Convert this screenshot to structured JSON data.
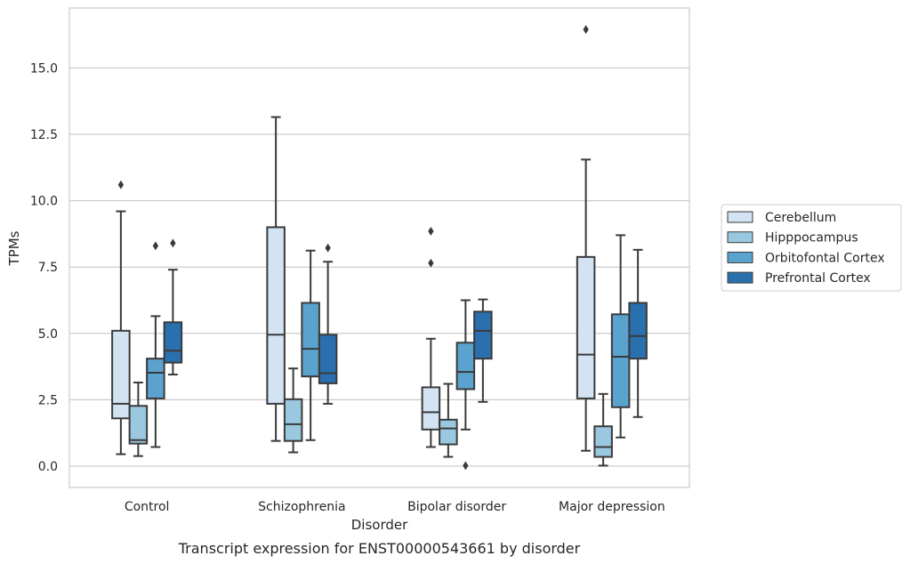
{
  "chart_data": {
    "type": "box",
    "title": "",
    "caption": "Transcript expression for ENST00000543661 by disorder",
    "xlabel": "Disorder",
    "ylabel": "TPMs",
    "ylim": [
      -0.65,
      17.45
    ],
    "yticks": [
      "0.0",
      "2.5",
      "5.0",
      "7.5",
      "10.0",
      "12.5",
      "15.0"
    ],
    "grid": "horizontal",
    "legend_position": "right",
    "categories": [
      "Control",
      "Schizophrenia",
      "Bipolar disorder",
      "Major depression"
    ],
    "series": [
      {
        "name": "Cerebellum",
        "color": "#d3e3f3",
        "boxes": [
          {
            "whislo": 0.45,
            "q1": 1.8,
            "med": 2.35,
            "q3": 5.1,
            "whishi": 9.6,
            "fliers": [
              10.6
            ]
          },
          {
            "whislo": 0.95,
            "q1": 2.35,
            "med": 4.95,
            "q3": 9.0,
            "whishi": 13.15,
            "fliers": []
          },
          {
            "whislo": 0.72,
            "q1": 1.38,
            "med": 2.03,
            "q3": 2.97,
            "whishi": 4.8,
            "fliers": [
              7.65,
              8.85
            ]
          },
          {
            "whislo": 0.58,
            "q1": 2.55,
            "med": 4.2,
            "q3": 7.88,
            "whishi": 11.55,
            "fliers": [
              16.45
            ]
          }
        ]
      },
      {
        "name": "Hipppocampus",
        "color": "#9ac8e0",
        "boxes": [
          {
            "whislo": 0.38,
            "q1": 0.85,
            "med": 0.98,
            "q3": 2.27,
            "whishi": 3.15,
            "fliers": []
          },
          {
            "whislo": 0.52,
            "q1": 0.95,
            "med": 1.58,
            "q3": 2.52,
            "whishi": 3.68,
            "fliers": []
          },
          {
            "whislo": 0.35,
            "q1": 0.82,
            "med": 1.42,
            "q3": 1.75,
            "whishi": 3.1,
            "fliers": []
          },
          {
            "whislo": 0.02,
            "q1": 0.35,
            "med": 0.72,
            "q3": 1.5,
            "whishi": 2.72,
            "fliers": []
          }
        ]
      },
      {
        "name": "Orbitofontal Cortex",
        "color": "#5ba3cf",
        "boxes": [
          {
            "whislo": 0.72,
            "q1": 2.55,
            "med": 3.52,
            "q3": 4.05,
            "whishi": 5.65,
            "fliers": [
              8.3
            ]
          },
          {
            "whislo": 0.98,
            "q1": 3.38,
            "med": 4.42,
            "q3": 6.15,
            "whishi": 8.12,
            "fliers": []
          },
          {
            "whislo": 1.38,
            "q1": 2.9,
            "med": 3.55,
            "q3": 4.65,
            "whishi": 6.25,
            "fliers": [
              0.02
            ]
          },
          {
            "whislo": 1.08,
            "q1": 2.22,
            "med": 4.12,
            "q3": 5.72,
            "whishi": 8.7,
            "fliers": []
          }
        ]
      },
      {
        "name": "Prefrontal Cortex",
        "color": "#2a6fae",
        "boxes": [
          {
            "whislo": 3.45,
            "q1": 3.9,
            "med": 4.35,
            "q3": 5.42,
            "whishi": 7.4,
            "fliers": [
              8.4
            ]
          },
          {
            "whislo": 2.35,
            "q1": 3.12,
            "med": 3.5,
            "q3": 4.95,
            "whishi": 7.7,
            "fliers": [
              8.22
            ]
          },
          {
            "whislo": 2.42,
            "q1": 4.05,
            "med": 5.1,
            "q3": 5.82,
            "whishi": 6.28,
            "fliers": []
          },
          {
            "whislo": 1.85,
            "q1": 4.05,
            "med": 4.9,
            "q3": 6.15,
            "whishi": 8.15,
            "fliers": []
          }
        ]
      }
    ]
  }
}
